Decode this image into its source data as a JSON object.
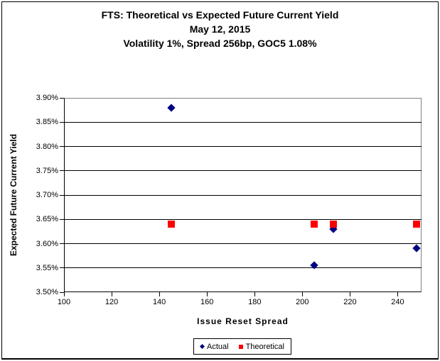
{
  "chart_data": {
    "type": "scatter",
    "title": "FTS: Theoretical vs Expected Future Current Yield",
    "subtitle1": "May 12, 2015",
    "subtitle2": "Volatility 1%, Spread 256bp, GOC5 1.08%",
    "xlabel": "Issue Reset Spread",
    "ylabel": "Expected Future Current Yield",
    "xlim": [
      100,
      250
    ],
    "ylim": [
      3.5,
      3.9
    ],
    "x_tick_labels": [
      "100",
      "120",
      "140",
      "160",
      "180",
      "200",
      "220",
      "240"
    ],
    "y_tick_labels": [
      "3.90%",
      "3.85%",
      "3.80%",
      "3.75%",
      "3.70%",
      "3.65%",
      "3.60%",
      "3.55%",
      "3.50%"
    ],
    "grid": "horizontal-black-gridlines, gray plot top/right border",
    "legend_position": "bottom-center-boxed",
    "series": [
      {
        "name": "Actual",
        "marker": "diamond",
        "color": "#000080",
        "points": [
          [
            145,
            3.88
          ],
          [
            205,
            3.555
          ],
          [
            213,
            3.63
          ],
          [
            248,
            3.59
          ]
        ]
      },
      {
        "name": "Theoretical",
        "marker": "square",
        "color": "#FF0000",
        "points": [
          [
            145,
            3.64
          ],
          [
            205,
            3.64
          ],
          [
            213,
            3.64
          ],
          [
            248,
            3.64
          ]
        ]
      }
    ]
  }
}
